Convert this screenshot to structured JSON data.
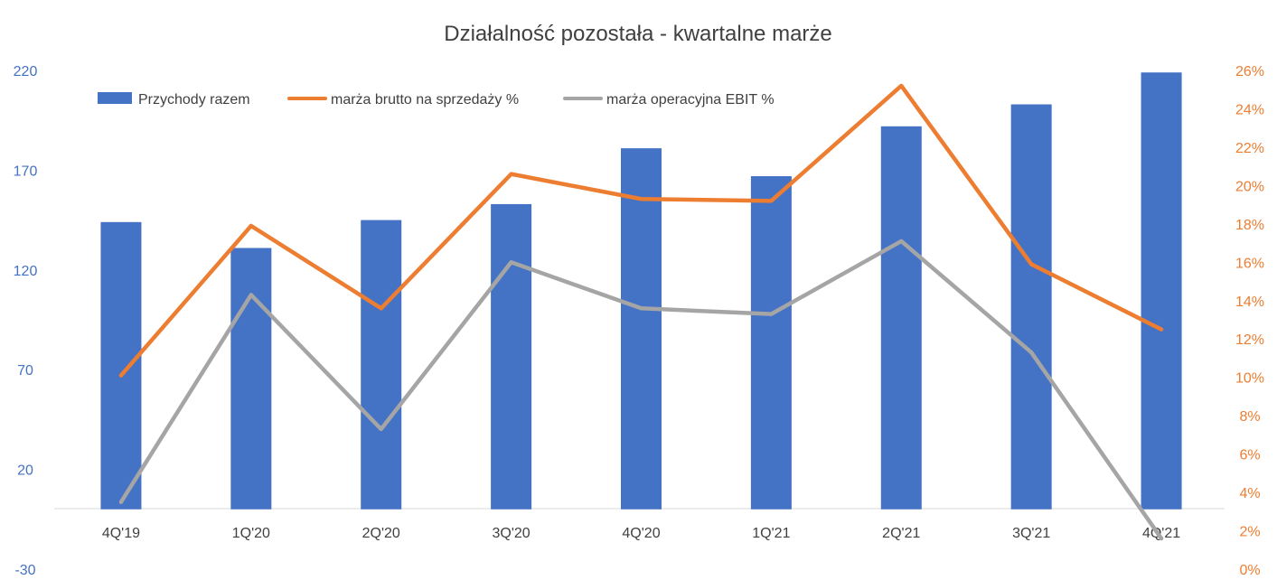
{
  "chart_data": {
    "type": "bar",
    "title": "Działalność pozostała - kwartalne marże",
    "categories": [
      "4Q'19",
      "1Q'20",
      "2Q'20",
      "3Q'20",
      "4Q'20",
      "1Q'21",
      "2Q'21",
      "3Q'21",
      "4Q'21"
    ],
    "series": [
      {
        "name": "Przychody razem",
        "type": "bar",
        "axis": "left",
        "color": "#4472C4",
        "values": [
          144,
          131,
          145,
          153,
          181,
          167,
          192,
          203,
          219
        ]
      },
      {
        "name": "marża brutto na sprzedaży %",
        "type": "line",
        "axis": "right",
        "color": "#ED7D31",
        "values": [
          10.1,
          17.9,
          13.6,
          20.6,
          19.3,
          19.2,
          25.2,
          15.9,
          12.5
        ]
      },
      {
        "name": "marża operacyjna EBIT %",
        "type": "line",
        "axis": "right",
        "color": "#A5A5A5",
        "values": [
          3.5,
          14.3,
          7.3,
          16.0,
          13.6,
          13.3,
          17.1,
          11.3,
          1.6
        ]
      }
    ],
    "y_left": {
      "ylim": [
        -30,
        220
      ],
      "ticks": [
        "-30",
        "20",
        "70",
        "120",
        "170",
        "220"
      ]
    },
    "y_right": {
      "ylim": [
        0,
        26
      ],
      "ticks": [
        "0%",
        "2%",
        "4%",
        "6%",
        "8%",
        "10%",
        "12%",
        "14%",
        "16%",
        "18%",
        "20%",
        "22%",
        "24%",
        "26%"
      ]
    },
    "grid": false,
    "legend_position": "top-left"
  }
}
